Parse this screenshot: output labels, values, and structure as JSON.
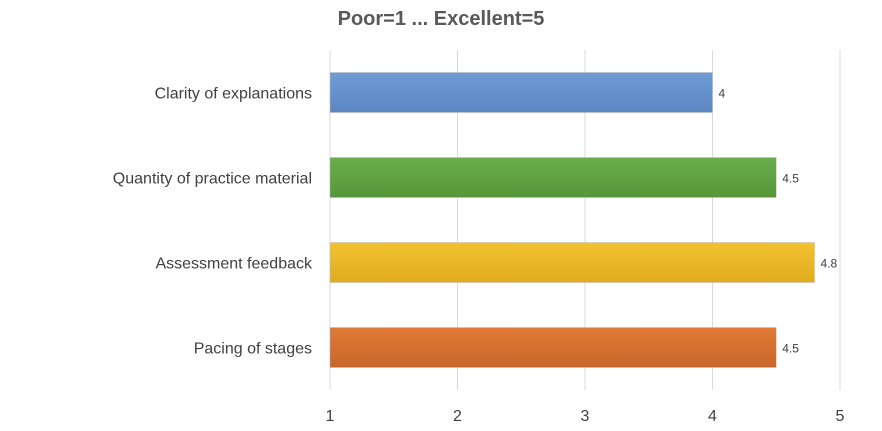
{
  "chart_data": {
    "type": "bar",
    "orientation": "horizontal",
    "title": "Poor=1 ... Excellent=5",
    "xlabel": "",
    "ylabel": "",
    "categories": [
      "Clarity of explanations",
      "Quantity of practice material",
      "Assessment feedback",
      "Pacing of stages"
    ],
    "values": [
      4,
      4.5,
      4.8,
      4.5
    ],
    "data_labels": [
      "4",
      "4.5",
      "4.8",
      "4.5"
    ],
    "xlim": [
      1,
      5
    ],
    "x_ticks": [
      1,
      2,
      3,
      4,
      5
    ],
    "x_tick_labels": [
      "1",
      "2",
      "3",
      "4",
      "5"
    ],
    "grid": "vertical",
    "legend": "none",
    "bar_colors": [
      "#6f9bd6",
      "#6aae4a",
      "#f2c230",
      "#e07a36"
    ],
    "bar_colors_dark": [
      "#5b86c2",
      "#56963a",
      "#e0ac1e",
      "#c9652a"
    ]
  }
}
